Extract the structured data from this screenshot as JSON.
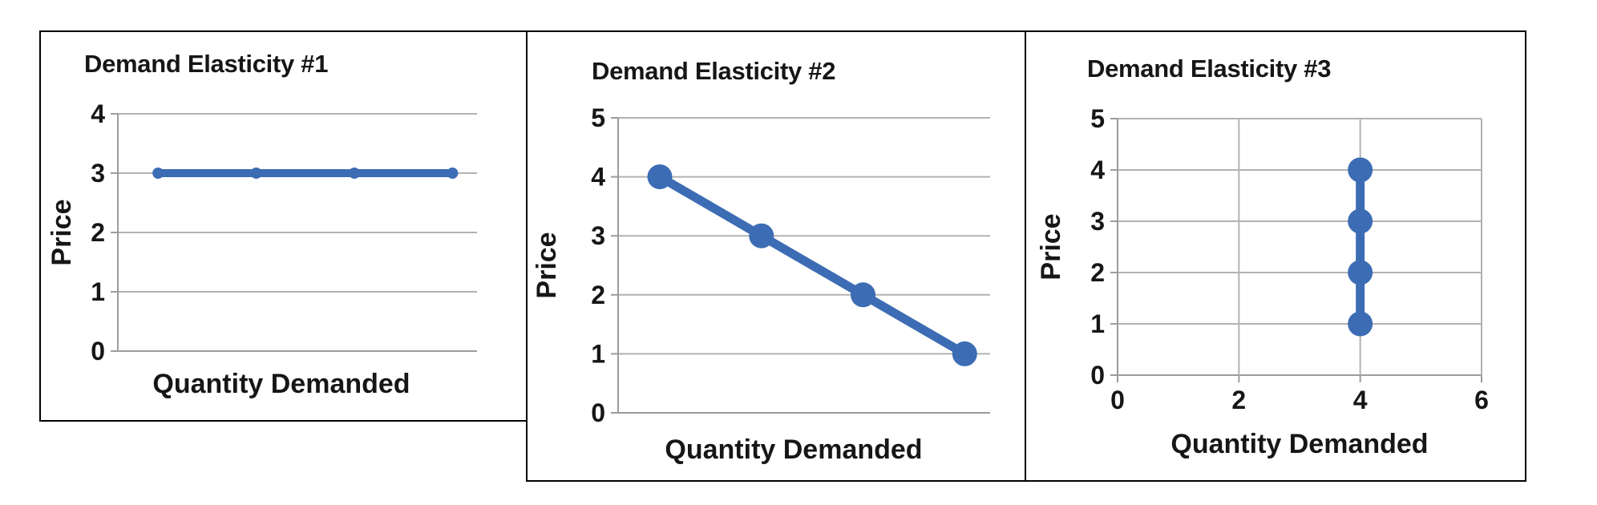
{
  "page": {
    "background": "#ffffff",
    "panel_border_color": "#000000",
    "gridline_color": "#b2b2b2",
    "axis_line_color": "#9c9c9c",
    "text_color": "#161616",
    "accent_line_color": "#3c6cb4"
  },
  "chart_data": [
    {
      "type": "line",
      "title": "Demand Elasticity #1",
      "xlabel": "Quantity Demanded",
      "ylabel": "Price",
      "x_range": [
        0.59,
        4.25
      ],
      "y_range": [
        0,
        4
      ],
      "ylim": [
        0,
        4
      ],
      "y_ticks": [
        0,
        1,
        2,
        3,
        4
      ],
      "x_ticks": [],
      "x_tick_labels_shown": false,
      "grid": {
        "horizontal": true,
        "vertical": false
      },
      "legend": "none",
      "line_color": "#3c6cb4",
      "series": [
        {
          "points": [
            [
              1,
              3
            ],
            [
              2,
              3
            ],
            [
              3,
              3
            ],
            [
              4,
              3
            ]
          ]
        }
      ],
      "note": "horizontal line at price 3 (perfectly elastic demand)"
    },
    {
      "type": "line",
      "title": "Demand Elasticity #2",
      "xlabel": "Quantity Demanded",
      "ylabel": "Price",
      "x_range": [
        0.59,
        4.25
      ],
      "y_range": [
        0,
        5
      ],
      "ylim": [
        0,
        5
      ],
      "y_ticks": [
        0,
        1,
        2,
        3,
        4,
        5
      ],
      "x_ticks": [],
      "x_tick_labels_shown": false,
      "grid": {
        "horizontal": true,
        "vertical": false
      },
      "legend": "none",
      "line_color": "#3c6cb4",
      "series": [
        {
          "points": [
            [
              1,
              4
            ],
            [
              2,
              3
            ],
            [
              3,
              2
            ],
            [
              4,
              1
            ]
          ]
        }
      ],
      "note": "downward sloping demand curve with markers"
    },
    {
      "type": "line",
      "title": "Demand Elasticity #3",
      "xlabel": "Quantity Demanded",
      "ylabel": "Price",
      "x_range": [
        0,
        6
      ],
      "y_range": [
        0,
        5
      ],
      "ylim": [
        0,
        5
      ],
      "y_ticks": [
        0,
        1,
        2,
        3,
        4,
        5
      ],
      "x_ticks": [
        0,
        2,
        4,
        6
      ],
      "x_tick_labels_shown": true,
      "grid": {
        "horizontal": true,
        "vertical": true
      },
      "legend": "none",
      "line_color": "#3c6cb4",
      "series": [
        {
          "points": [
            [
              4,
              1
            ],
            [
              4,
              2
            ],
            [
              4,
              3
            ],
            [
              4,
              4
            ]
          ]
        }
      ],
      "note": "vertical line at quantity 4 (perfectly inelastic demand)"
    }
  ]
}
